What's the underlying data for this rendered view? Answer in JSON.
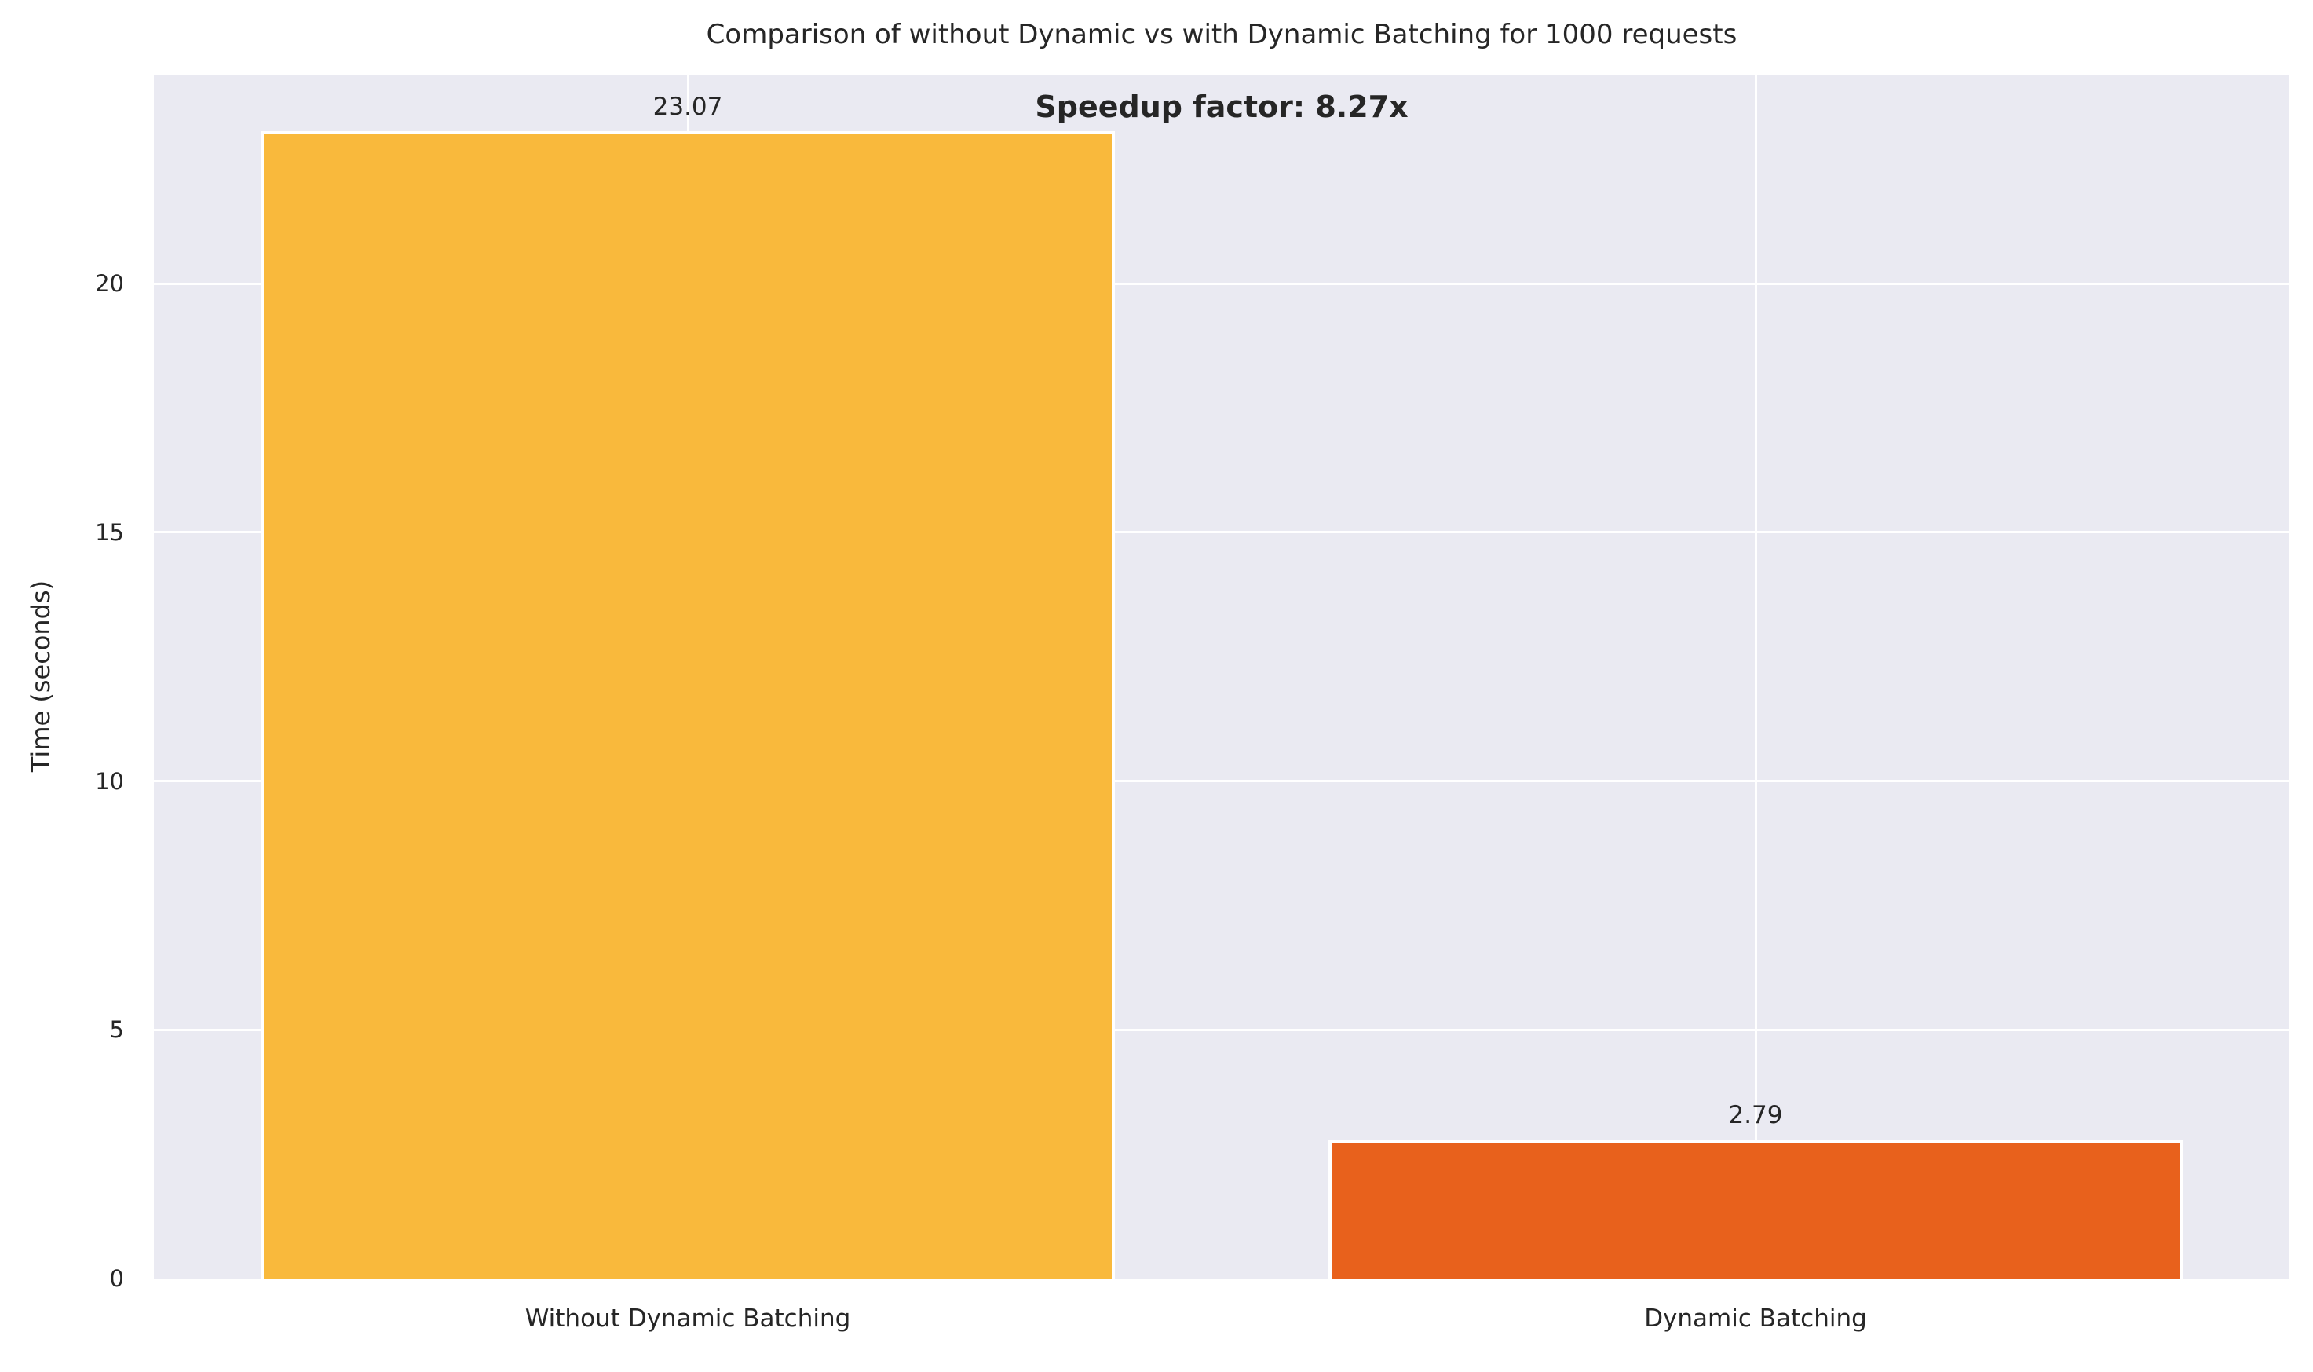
{
  "chart_data": {
    "type": "bar",
    "title": "Comparison of without Dynamic vs with Dynamic Batching for 1000 requests",
    "categories": [
      "Without Dynamic Batching",
      "Dynamic Batching"
    ],
    "values": [
      23.07,
      2.79
    ],
    "bar_labels": [
      "23.07",
      "2.79"
    ],
    "bar_colors": [
      "#f9b93c",
      "#e8611c"
    ],
    "bar_edge_color": "#ffffff",
    "annotation": "Speedup factor: 8.27x",
    "speedup_factor": "8.27x",
    "xlabel": "",
    "ylabel": "Time (seconds)",
    "ylim": [
      0,
      24.2
    ],
    "yticks": [
      0,
      5,
      10,
      15,
      20
    ],
    "grid": true,
    "legend": false,
    "plot_background": "#eaeaf2",
    "grid_color": "#ffffff",
    "text_color": "#262626"
  }
}
